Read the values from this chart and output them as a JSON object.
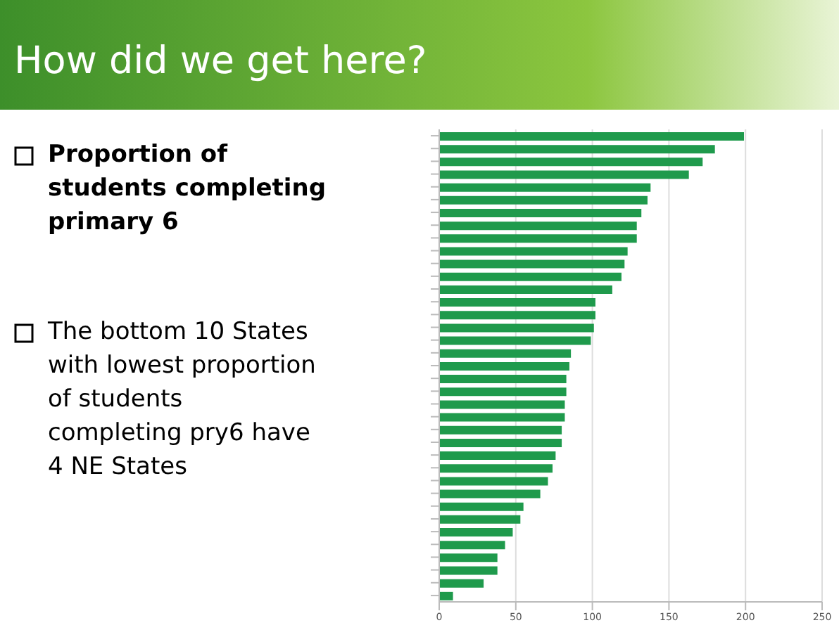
{
  "chart_data": {
    "type": "bar",
    "orientation": "horizontal",
    "title": "How did we get here?",
    "annotations": [
      "Proportion of students completing primary 6",
      "The bottom 10 States  with lowest proportion of students completing pry6 have 4 NE States"
    ],
    "categories": [
      null,
      null,
      null,
      null,
      null,
      null,
      null,
      null,
      null,
      null,
      null,
      null,
      null,
      null,
      null,
      null,
      null,
      null,
      null,
      null,
      null,
      null,
      null,
      null,
      null,
      null,
      null,
      null,
      null,
      null,
      null,
      null,
      null,
      null,
      null,
      null,
      null
    ],
    "values": [
      199,
      180,
      172,
      163,
      138,
      136,
      132,
      129,
      129,
      123,
      121,
      119,
      113,
      102,
      102,
      101,
      99,
      86,
      85,
      83,
      83,
      82,
      82,
      80,
      80,
      76,
      74,
      71,
      66,
      55,
      53,
      48,
      43,
      38,
      38,
      29,
      9
    ],
    "color": "#1f9a4c",
    "xlim": [
      0,
      250
    ],
    "xticks": [
      0,
      50,
      100,
      150,
      200,
      250
    ],
    "grid": "x"
  }
}
